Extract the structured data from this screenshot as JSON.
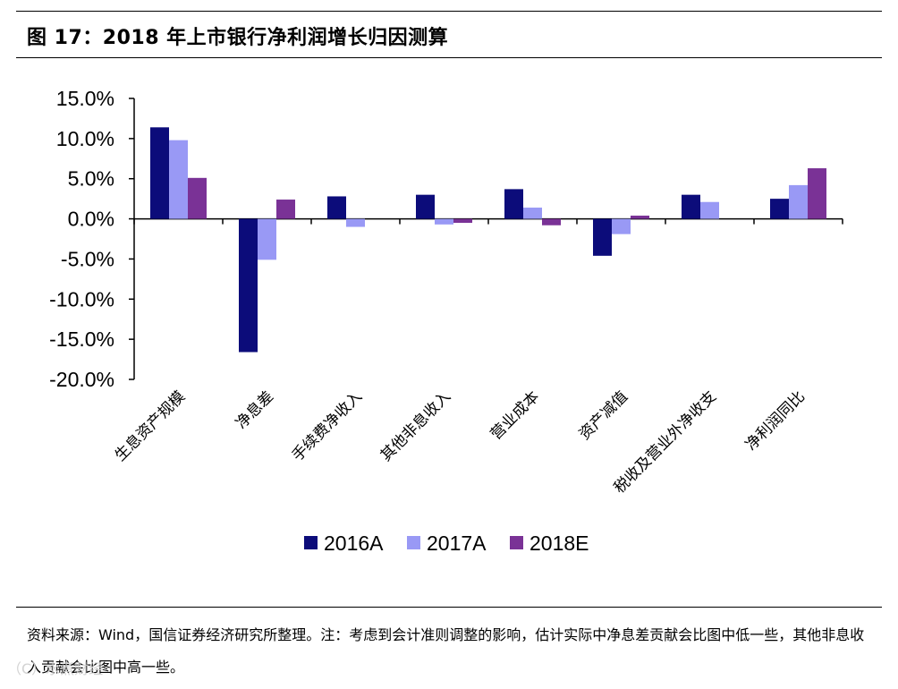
{
  "title": "图 17：2018 年上市银行净利润增长归因测算",
  "chart_data": {
    "type": "bar",
    "categories": [
      "生息资产规模",
      "净息差",
      "手续费净收入",
      "其他非息收入",
      "营业成本",
      "资产减值",
      "税收及营业外净收支",
      "净利润同比"
    ],
    "series": [
      {
        "name": "2016A",
        "color": "#0c0c7a",
        "values": [
          11.4,
          -16.6,
          2.8,
          3.0,
          3.7,
          -4.6,
          3.0,
          2.5
        ]
      },
      {
        "name": "2017A",
        "color": "#9999f5",
        "values": [
          9.8,
          -5.1,
          -1.0,
          -0.7,
          1.4,
          -1.9,
          2.1,
          4.2
        ]
      },
      {
        "name": "2018E",
        "color": "#7a3296",
        "values": [
          5.1,
          2.4,
          0.0,
          -0.5,
          -0.8,
          0.4,
          0.0,
          6.3
        ]
      }
    ],
    "ylim": [
      -20,
      15
    ],
    "yticks": [
      15,
      10,
      5,
      0,
      -5,
      -10,
      -15,
      -20
    ],
    "ytick_labels": [
      "15.0%",
      "10.0%",
      "5.0%",
      "0.0%",
      "-5.0%",
      "-10.0%",
      "-15.0%",
      "-20.0%"
    ],
    "legend_position": "bottom-center"
  },
  "footnote": "资料来源：Wind，国信证券经济研究所整理。注：考虑到会计准则调整的影响，估计实际中净息差贡献会比图中低一些，其他非息收入贡献会比图中高一些。",
  "watermark": "（C）水煮财经"
}
